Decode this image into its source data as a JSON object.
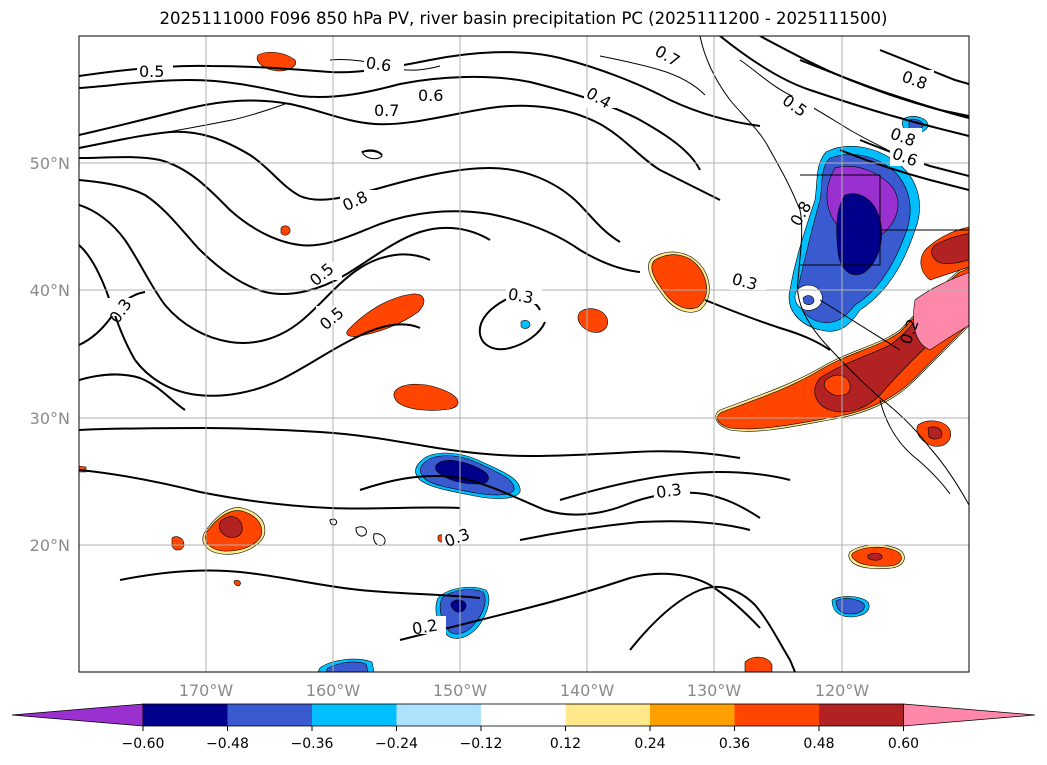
{
  "title": "2025111000 F096 850 hPa PV, river basin precipitation PC (2025111200 - 2025111500)",
  "map": {
    "lon_labels": [
      "170°W",
      "160°W",
      "150°W",
      "140°W",
      "130°W",
      "120°W"
    ],
    "lat_labels": [
      "50°N",
      "40°N",
      "30°N",
      "20°N"
    ],
    "contour_labels": [
      "0.5",
      "0.6",
      "0.6",
      "0.7",
      "0.4",
      "0.7",
      "0.8",
      "0.5",
      "0.8",
      "0.8",
      "0.6",
      "0.8",
      "0.5",
      "0.5",
      "0.3",
      "0.3",
      "0.3",
      "0.3",
      "0.3",
      "0.2",
      "0.2"
    ]
  },
  "colorbar": {
    "ticks": [
      "−0.60",
      "−0.48",
      "−0.36",
      "−0.24",
      "−0.12",
      "0.12",
      "0.24",
      "0.36",
      "0.48",
      "0.60"
    ],
    "colors": [
      "#9b30d0",
      "#00008b",
      "#3a5bd0",
      "#00bfff",
      "#aee2ff",
      "#ffffff",
      "#ffe98a",
      "#ffa000",
      "#ff4500",
      "#b22222",
      "#ff88aa"
    ]
  },
  "colors": {
    "orange_red": "#ff4500",
    "dark_red": "#b22222",
    "pink": "#ff88aa",
    "purple": "#9b30d0",
    "navy": "#00008b",
    "blue": "#3a5bd0",
    "sky": "#00bfff",
    "light_blue": "#aee2ff",
    "yellow": "#ffe98a",
    "orange": "#ffa000",
    "gridline": "#b0b0b0"
  }
}
